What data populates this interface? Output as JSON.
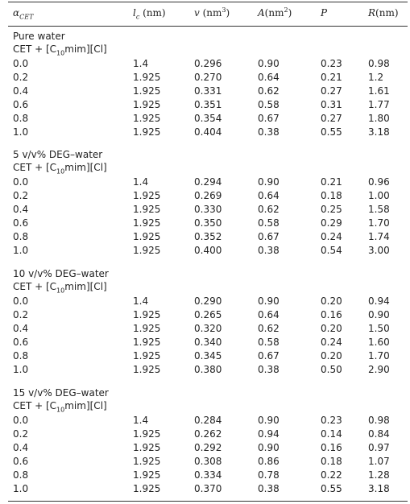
{
  "headers": {
    "alpha": "α",
    "alpha_sub": "CET",
    "lc": "l",
    "lc_sub": "c",
    "lc_unit": " (nm)",
    "v": "v",
    "v_unit": " (nm",
    "v_exp": "3",
    "v_close": ")",
    "A": "A",
    "A_unit": "(nm",
    "A_exp": "2",
    "A_close": ")",
    "P": "P",
    "R": "R",
    "R_unit": "(nm)"
  },
  "groups": [
    {
      "title": "Pure water",
      "mix_pre": "CET + [C",
      "mix_sub": "10",
      "mix_post": "mim][Cl]",
      "rows": [
        [
          "0.0",
          "1.4",
          "0.296",
          "0.90",
          "0.23",
          "0.98"
        ],
        [
          "0.2",
          "1.925",
          "0.270",
          "0.64",
          "0.21",
          "1.2"
        ],
        [
          "0.4",
          "1.925",
          "0.331",
          "0.62",
          "0.27",
          "1.61"
        ],
        [
          "0.6",
          "1.925",
          "0.351",
          "0.58",
          "0.31",
          "1.77"
        ],
        [
          "0.8",
          "1.925",
          "0.354",
          "0.67",
          "0.27",
          "1.80"
        ],
        [
          "1.0",
          "1.925",
          "0.404",
          "0.38",
          "0.55",
          "3.18"
        ]
      ]
    },
    {
      "title": "5 v/v% DEG–water",
      "mix_pre": "CET + [C",
      "mix_sub": "10",
      "mix_post": "mim][Cl]",
      "rows": [
        [
          "0.0",
          "1.4",
          "0.294",
          "0.90",
          "0.21",
          "0.96"
        ],
        [
          "0.2",
          "1.925",
          "0.269",
          "0.64",
          "0.18",
          "1.00"
        ],
        [
          "0.4",
          "1.925",
          "0.330",
          "0.62",
          "0.25",
          "1.58"
        ],
        [
          "0.6",
          "1.925",
          "0.350",
          "0.58",
          "0.29",
          "1.70"
        ],
        [
          "0.8",
          "1.925",
          "0.352",
          "0.67",
          "0.24",
          "1.74"
        ],
        [
          "1.0",
          "1.925",
          "0.400",
          "0.38",
          "0.54",
          "3.00"
        ]
      ]
    },
    {
      "title": "10 v/v% DEG–water",
      "mix_pre": "CET + [C",
      "mix_sub": "10",
      "mix_post": "mim][Cl]",
      "rows": [
        [
          "0.0",
          "1.4",
          "0.290",
          "0.90",
          "0.20",
          "0.94"
        ],
        [
          "0.2",
          "1.925",
          "0.265",
          "0.64",
          "0.16",
          "0.90"
        ],
        [
          "0.4",
          "1.925",
          "0.320",
          "0.62",
          "0.20",
          "1.50"
        ],
        [
          "0.6",
          "1.925",
          "0.340",
          "0.58",
          "0.24",
          "1.60"
        ],
        [
          "0.8",
          "1.925",
          "0.345",
          "0.67",
          "0.20",
          "1.70"
        ],
        [
          "1.0",
          "1.925",
          "0.380",
          "0.38",
          "0.50",
          "2.90"
        ]
      ]
    },
    {
      "title": "15 v/v% DEG–water",
      "mix_pre": "CET + [C",
      "mix_sub": "10",
      "mix_post": "mim][Cl]",
      "rows": [
        [
          "0.0",
          "1.4",
          "0.284",
          "0.90",
          "0.23",
          "0.98"
        ],
        [
          "0.2",
          "1.925",
          "0.262",
          "0.94",
          "0.14",
          "0.84"
        ],
        [
          "0.4",
          "1.925",
          "0.292",
          "0.90",
          "0.16",
          "0.97"
        ],
        [
          "0.6",
          "1.925",
          "0.308",
          "0.86",
          "0.18",
          "1.07"
        ],
        [
          "0.8",
          "1.925",
          "0.334",
          "0.78",
          "0.22",
          "1.28"
        ],
        [
          "1.0",
          "1.925",
          "0.370",
          "0.38",
          "0.55",
          "3.18"
        ]
      ]
    }
  ]
}
